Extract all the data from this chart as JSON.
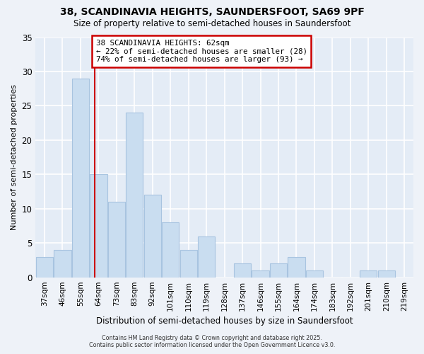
{
  "title": "38, SCANDINAVIA HEIGHTS, SAUNDERSFOOT, SA69 9PF",
  "subtitle": "Size of property relative to semi-detached houses in Saundersfoot",
  "xlabel": "Distribution of semi-detached houses by size in Saundersfoot",
  "ylabel": "Number of semi-detached properties",
  "bin_labels": [
    "37sqm",
    "46sqm",
    "55sqm",
    "64sqm",
    "73sqm",
    "83sqm",
    "92sqm",
    "101sqm",
    "110sqm",
    "119sqm",
    "128sqm",
    "137sqm",
    "146sqm",
    "155sqm",
    "164sqm",
    "174sqm",
    "183sqm",
    "192sqm",
    "201sqm",
    "210sqm",
    "219sqm"
  ],
  "counts": [
    3,
    4,
    29,
    15,
    11,
    24,
    12,
    8,
    4,
    6,
    0,
    2,
    1,
    2,
    3,
    1,
    0,
    0,
    1,
    1,
    0
  ],
  "bar_color": "#c9ddf0",
  "bar_edge_color": "#a8c4e0",
  "property_bin_index": 2,
  "vline_color": "#cc0000",
  "ylim": [
    0,
    35
  ],
  "yticks": [
    0,
    5,
    10,
    15,
    20,
    25,
    30,
    35
  ],
  "annotation_line1": "38 SCANDINAVIA HEIGHTS: 62sqm",
  "annotation_line2": "← 22% of semi-detached houses are smaller (28)",
  "annotation_line3": "74% of semi-detached houses are larger (93) →",
  "footer1": "Contains HM Land Registry data © Crown copyright and database right 2025.",
  "footer2": "Contains public sector information licensed under the Open Government Licence v3.0.",
  "bg_color": "#eef2f8",
  "plot_bg_color": "#e4ecf6",
  "vline_x": 2.78
}
